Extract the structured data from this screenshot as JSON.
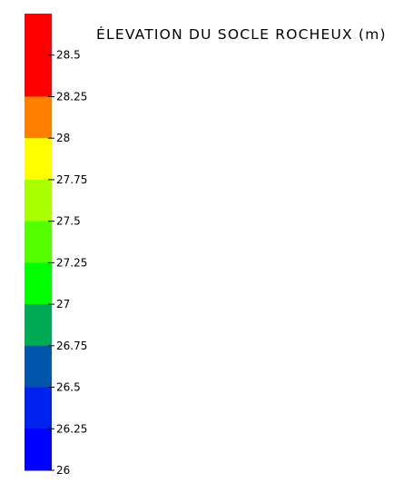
{
  "chart_data": {
    "type": "heatmap",
    "title": "ÉLEVATION DU SOCLE ROCHEUX (m)",
    "legend_orientation": "vertical",
    "range": [
      26,
      28.5
    ],
    "band_step": 0.25,
    "ticks": [
      28.5,
      28.25,
      28,
      27.75,
      27.5,
      27.25,
      27,
      26.75,
      26.5,
      26.25,
      26
    ],
    "tick_labels": [
      "28.5",
      "28.25",
      "28",
      "27.75",
      "27.5",
      "27.25",
      "27",
      "26.75",
      "26.5",
      "26.25",
      "26"
    ],
    "bands": [
      {
        "from": 28.5,
        "to": 28.75,
        "color": "#ff0000"
      },
      {
        "from": 28.25,
        "to": 28.5,
        "color": "#ff0000"
      },
      {
        "from": 28,
        "to": 28.25,
        "color": "#ff7f00"
      },
      {
        "from": 27.75,
        "to": 28,
        "color": "#ffff00"
      },
      {
        "from": 27.5,
        "to": 27.75,
        "color": "#aaff00"
      },
      {
        "from": 27.25,
        "to": 27.5,
        "color": "#55ff00"
      },
      {
        "from": 27,
        "to": 27.25,
        "color": "#00ff00"
      },
      {
        "from": 26.75,
        "to": 27,
        "color": "#00aa55"
      },
      {
        "from": 26.5,
        "to": 26.75,
        "color": "#0055aa"
      },
      {
        "from": 26.25,
        "to": 26.5,
        "color": "#0022ee"
      },
      {
        "from": 26,
        "to": 26.25,
        "color": "#0000ff"
      }
    ]
  }
}
